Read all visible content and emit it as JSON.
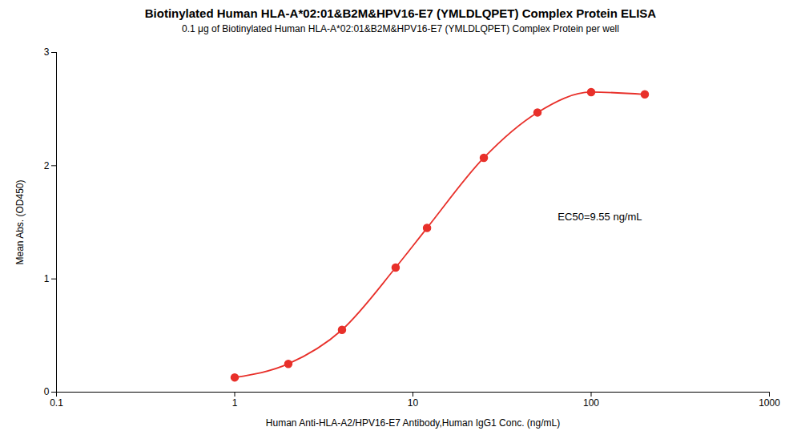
{
  "chart_data": {
    "type": "line",
    "title": "Biotinylated Human HLA-A*02:01&B2M&HPV16-E7 (YMLDLQPET) Complex Protein ELISA",
    "subtitle": "0.1 μg of Biotinylated Human HLA-A*02:01&B2M&HPV16-E7 (YMLDLQPET) Complex Protein per well",
    "xlabel": "Human Anti-HLA-A2/HPV16-E7 Antibody,Human IgG1 Conc. (ng/mL)",
    "ylabel": "Mean Abs. (OD450)",
    "x": [
      1.0,
      2.0,
      4.0,
      8.0,
      12.0,
      25.0,
      50.0,
      100.0,
      200.0
    ],
    "values": [
      0.13,
      0.25,
      0.55,
      1.1,
      1.45,
      2.07,
      2.47,
      2.65,
      2.63
    ],
    "color": "#E8302A",
    "marker": "circle",
    "line_style": "solid",
    "log": "x",
    "xlim": [
      0.1,
      1000
    ],
    "xticks": [
      0.1,
      1,
      10,
      100,
      1000
    ],
    "ylim": [
      0,
      3
    ],
    "yticks": [
      0,
      1,
      2,
      3
    ],
    "grid": false,
    "annotations": [
      {
        "text": "EC50=9.55 ng/mL",
        "x": 65,
        "y": 1.55
      }
    ]
  }
}
